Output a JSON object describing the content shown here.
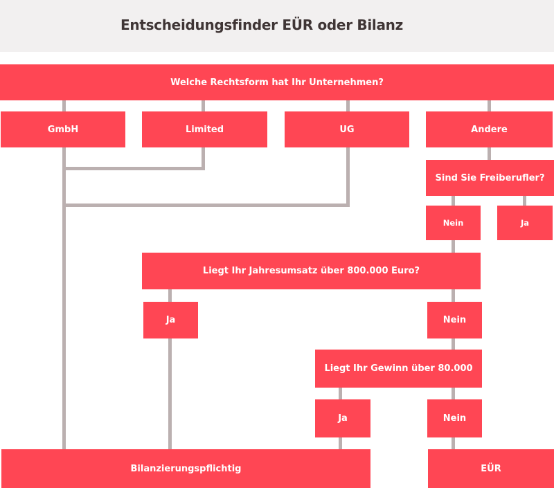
{
  "title": "Entscheidungsfinder EÜR oder Bilanz",
  "colors": {
    "box": "#ff4654",
    "connector": "#bbb0b0",
    "header_bg": "#f2f0f0"
  },
  "nodes": {
    "q_rechtsform": "Welche Rechtsform hat Ihr Unternehmen?",
    "gmbh": "GmbH",
    "limited": "Limited",
    "ug": "UG",
    "andere": "Andere",
    "q_freiberufler": "Sind Sie Freiberufler?",
    "freiberufler_nein": "Nein",
    "freiberufler_ja": "Ja",
    "q_umsatz": "Liegt Ihr Jahresumsatz über 800.000 Euro?",
    "umsatz_ja": "Ja",
    "umsatz_nein": "Nein",
    "q_gewinn": "Liegt Ihr Gewinn über 80.000",
    "gewinn_ja": "Ja",
    "gewinn_nein": "Nein",
    "result_bilanz": "Bilanzierungspflichtig",
    "result_eur": "EÜR"
  }
}
